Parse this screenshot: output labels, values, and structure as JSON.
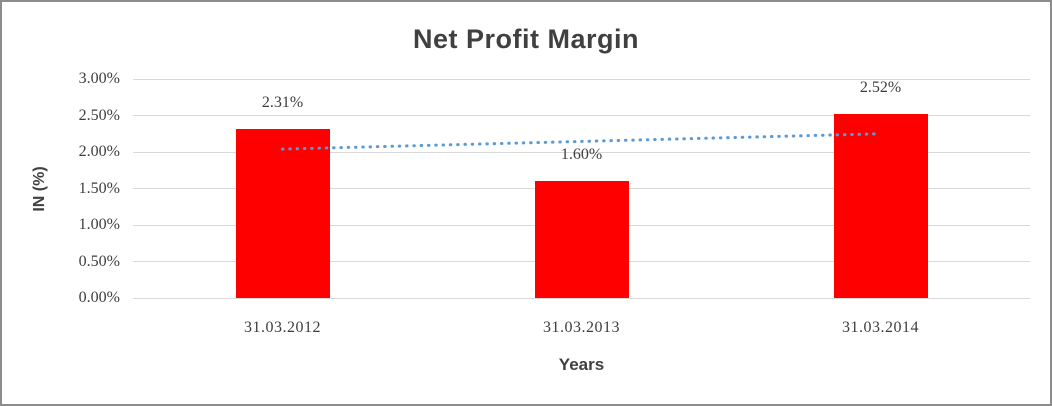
{
  "chart_data": {
    "type": "bar",
    "title": "Net Profit Margin",
    "xlabel": "Years",
    "ylabel": "IN (%)",
    "categories": [
      "31.03.2012",
      "31.03.2013",
      "31.03.2014"
    ],
    "values": [
      2.31,
      1.6,
      2.52
    ],
    "value_labels": [
      "2.31%",
      "1.60%",
      "2.52%"
    ],
    "ylim": [
      0,
      3
    ],
    "ytick_values": [
      3.0,
      2.5,
      2.0,
      1.5,
      1.0,
      0.5,
      0.0
    ],
    "ytick_labels": [
      "3.00%",
      "2.50%",
      "2.00%",
      "1.50%",
      "1.00%",
      "0.50%",
      "0.00%"
    ],
    "grid": true,
    "legend": "none",
    "bar_color": "#ff0000",
    "trendline": {
      "type": "linear",
      "style": "dotted",
      "color": "#5b9bd5",
      "start_value": 2.04,
      "end_value": 2.25
    }
  }
}
